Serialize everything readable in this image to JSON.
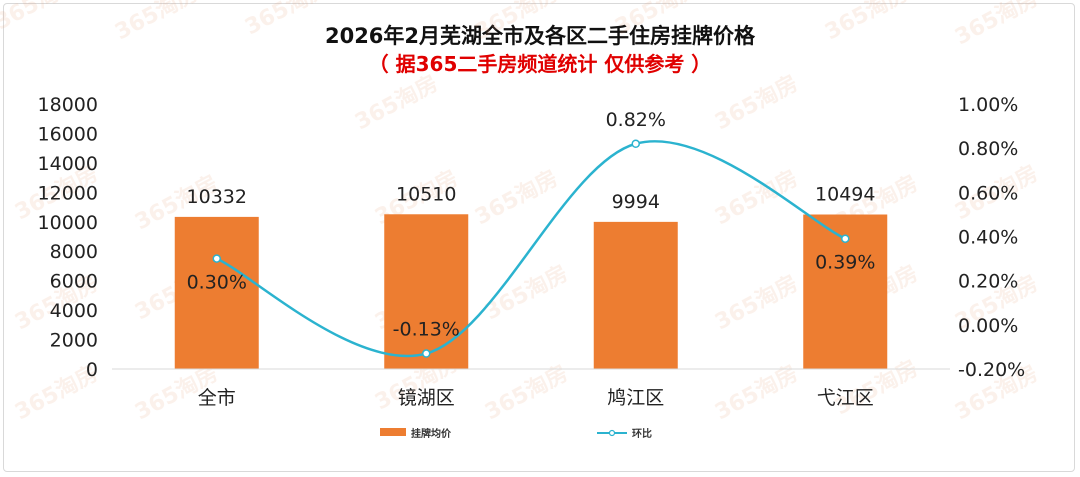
{
  "title": "2026年2月芜湖全市及各区二手住房挂牌价格",
  "subtitle": "（ 据365二手房频道统计 仅供参考 ）",
  "watermark_text": "365淘房",
  "colors": {
    "bar": "#ed7d31",
    "line": "#2bb3cf",
    "marker_fill": "#ffffff"
  },
  "chart_data": {
    "type": "bar",
    "categories": [
      "全市",
      "镜湖区",
      "鸠江区",
      "弋江区"
    ],
    "series": [
      {
        "name": "挂牌均价",
        "type": "bar",
        "axis": "left",
        "values": [
          10332,
          10510,
          9994,
          10494
        ],
        "labels": [
          "10332",
          "10510",
          "9994",
          "10494"
        ]
      },
      {
        "name": "环比",
        "type": "line",
        "axis": "right",
        "smooth": true,
        "values": [
          0.3,
          -0.13,
          0.82,
          0.39
        ],
        "labels": [
          "0.30%",
          "-0.13%",
          "0.82%",
          "0.39%"
        ]
      }
    ],
    "y_left": {
      "range": [
        0,
        18000
      ],
      "ticks": [
        "0",
        "2000",
        "4000",
        "6000",
        "8000",
        "10000",
        "12000",
        "14000",
        "16000",
        "18000"
      ]
    },
    "y_right": {
      "range": [
        -0.2,
        1.0
      ],
      "ticks": [
        "-0.20%",
        "0.00%",
        "0.20%",
        "0.40%",
        "0.60%",
        "0.80%",
        "1.00%"
      ]
    },
    "grid": false,
    "legend": "bottom"
  }
}
